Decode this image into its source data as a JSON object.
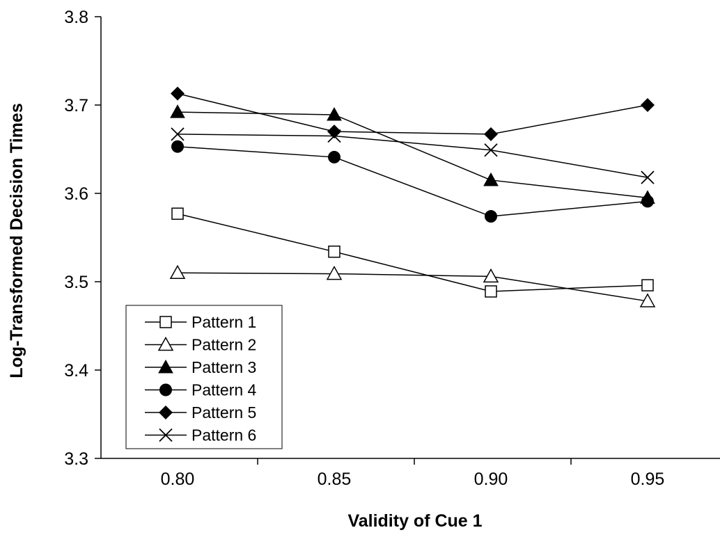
{
  "chart_data": {
    "type": "line",
    "xlabel": "Validity of Cue 1",
    "ylabel": "Log-Transformed Decision Times",
    "categories": [
      "0.80",
      "0.85",
      "0.90",
      "0.95"
    ],
    "y_ticks": [
      "3.3",
      "3.4",
      "3.5",
      "3.6",
      "3.7",
      "3.8"
    ],
    "ylim": [
      3.3,
      3.8
    ],
    "grid": false,
    "legend_position": "bottom-left",
    "series": [
      {
        "name": "Pattern 1",
        "marker": "square-open",
        "values": [
          3.577,
          3.534,
          3.489,
          3.496
        ]
      },
      {
        "name": "Pattern 2",
        "marker": "triangle-open",
        "values": [
          3.51,
          3.509,
          3.506,
          3.478
        ]
      },
      {
        "name": "Pattern 3",
        "marker": "triangle-filled",
        "values": [
          3.692,
          3.689,
          3.615,
          3.595
        ]
      },
      {
        "name": "Pattern 4",
        "marker": "circle-filled",
        "values": [
          3.653,
          3.641,
          3.574,
          3.591
        ]
      },
      {
        "name": "Pattern 5",
        "marker": "diamond-filled",
        "values": [
          3.713,
          3.67,
          3.667,
          3.7
        ]
      },
      {
        "name": "Pattern 6",
        "marker": "x",
        "values": [
          3.667,
          3.665,
          3.649,
          3.618
        ]
      }
    ]
  }
}
